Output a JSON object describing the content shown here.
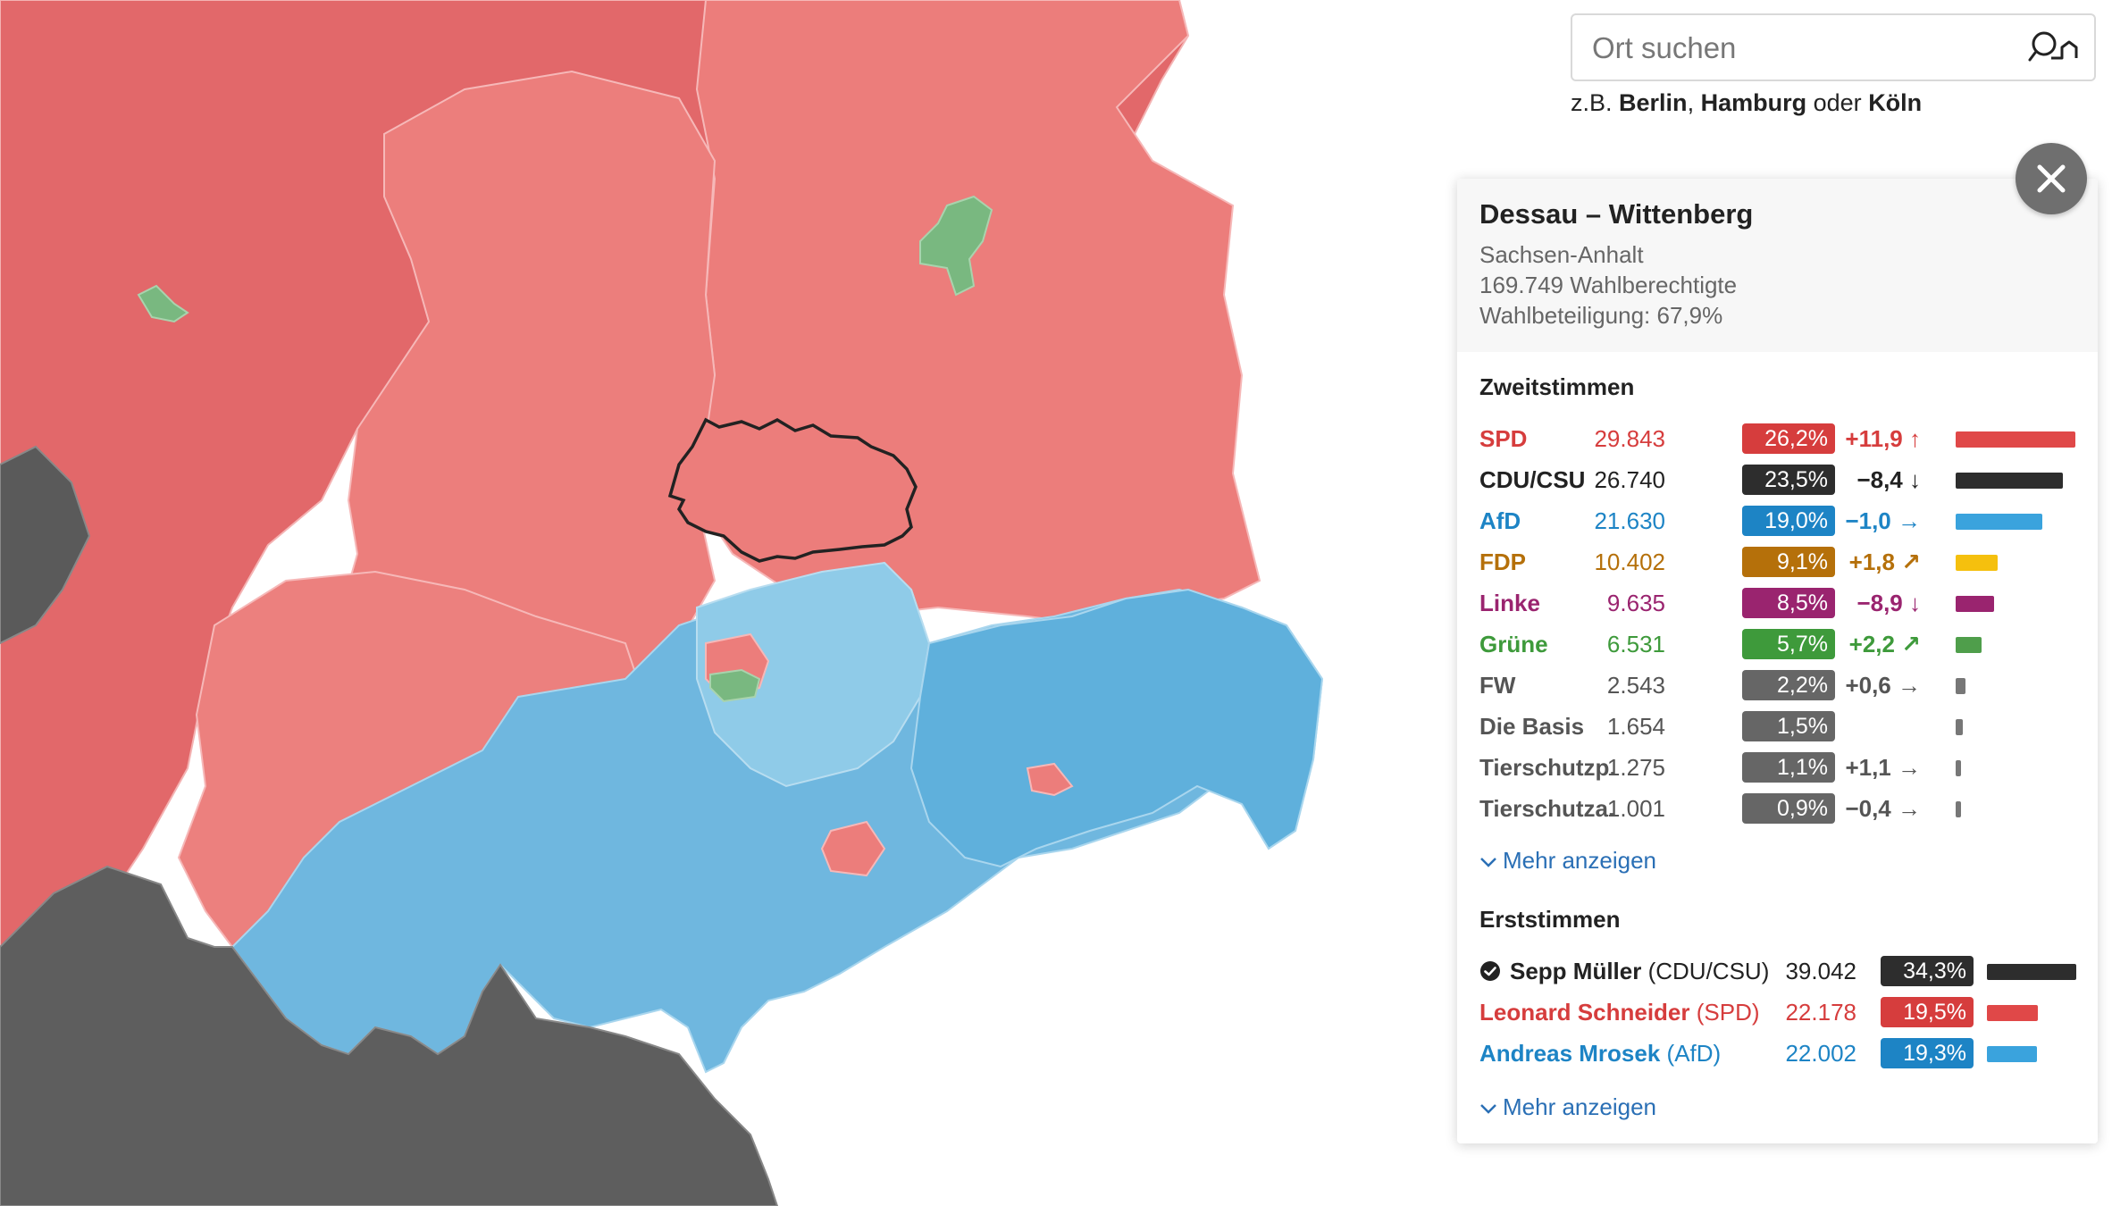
{
  "search": {
    "placeholder": "Ort suchen",
    "hint_prefix": "z.B.",
    "hint_city1": "Berlin",
    "hint_sep": ",",
    "hint_city2": "Hamburg",
    "hint_or": "oder",
    "hint_city3": "Köln",
    "button_icon": "search-location-icon"
  },
  "close_icon": "close-icon",
  "district": {
    "name": "Dessau – Wittenberg",
    "state": "Sachsen-Anhalt",
    "eligible": "169.749 Wahlberechtigte",
    "turnout": "Wahlbeteiligung: 67,9%"
  },
  "zweitstimmen": {
    "title": "Zweitstimmen",
    "more_label": "Mehr anzeigen",
    "parties": [
      {
        "name": "SPD",
        "votes": "29.843",
        "pct": "26,2%",
        "diff": "+11,9",
        "trend": "up",
        "share": 26.2,
        "color": "#d63d3d",
        "bar_color": "#e04848",
        "name_color": "#d63d3d"
      },
      {
        "name": "CDU/CSU",
        "votes": "26.740",
        "pct": "23,5%",
        "diff": "−8,4",
        "trend": "down",
        "share": 23.5,
        "color": "#2d2d2d",
        "bar_color": "#2d2d2d",
        "name_color": "#222222"
      },
      {
        "name": "AfD",
        "votes": "21.630",
        "pct": "19,0%",
        "diff": "−1,0",
        "trend": "right",
        "share": 19.0,
        "color": "#1d84c5",
        "bar_color": "#3aa3dd",
        "name_color": "#1d84c5"
      },
      {
        "name": "FDP",
        "votes": "10.402",
        "pct": "9,1%",
        "diff": "+1,8",
        "trend": "up-right",
        "share": 9.1,
        "color": "#b5700a",
        "bar_color": "#f5c00e",
        "name_color": "#b5700a"
      },
      {
        "name": "Linke",
        "votes": "9.635",
        "pct": "8,5%",
        "diff": "−8,9",
        "trend": "down",
        "share": 8.5,
        "color": "#9a246f",
        "bar_color": "#9a246f",
        "name_color": "#9a246f"
      },
      {
        "name": "Grüne",
        "votes": "6.531",
        "pct": "5,7%",
        "diff": "+2,2",
        "trend": "up-right",
        "share": 5.7,
        "color": "#3e9a3b",
        "bar_color": "#4f9e4b",
        "name_color": "#3e9a3b"
      },
      {
        "name": "FW",
        "votes": "2.543",
        "pct": "2,2%",
        "diff": "+0,6",
        "trend": "right",
        "share": 2.2,
        "color": "#666666",
        "bar_color": "#777777",
        "name_color": "#555555"
      },
      {
        "name": "Die Basis",
        "votes": "1.654",
        "pct": "1,5%",
        "diff": "",
        "trend": "",
        "share": 1.5,
        "color": "#666666",
        "bar_color": "#777777",
        "name_color": "#555555"
      },
      {
        "name": "Tierschutzp.",
        "votes": "1.275",
        "pct": "1,1%",
        "diff": "+1,1",
        "trend": "right",
        "share": 1.1,
        "color": "#666666",
        "bar_color": "#777777",
        "name_color": "#555555"
      },
      {
        "name": "Tierschutza.",
        "votes": "1.001",
        "pct": "0,9%",
        "diff": "−0,4",
        "trend": "right",
        "share": 0.9,
        "color": "#666666",
        "bar_color": "#777777",
        "name_color": "#555555"
      }
    ]
  },
  "erststimmen": {
    "title": "Erststimmen",
    "more_label": "Mehr anzeigen",
    "candidates": [
      {
        "name": "Sepp Müller",
        "party": "(CDU/CSU)",
        "votes": "39.042",
        "pct": "34,3%",
        "share": 34.3,
        "winner": true,
        "color": "#2d2d2d",
        "bar_color": "#2d2d2d",
        "name_color": "#222222"
      },
      {
        "name": "Leonard Schneider",
        "party": "(SPD)",
        "votes": "22.178",
        "pct": "19,5%",
        "share": 19.5,
        "winner": false,
        "color": "#d63d3d",
        "bar_color": "#e04848",
        "name_color": "#d63d3d"
      },
      {
        "name": "Andreas Mrosek",
        "party": "(AfD)",
        "votes": "22.002",
        "pct": "19,3%",
        "share": 19.3,
        "winner": false,
        "color": "#1d84c5",
        "bar_color": "#3aa3dd",
        "name_color": "#1d84c5"
      }
    ]
  },
  "map_colors": {
    "spd_dark": "#e06565",
    "spd_light": "#ec7d7b",
    "afd": "#78bde2",
    "afd_light": "#8fcbe8",
    "cdu": "#606060",
    "gruene": "#79b880"
  }
}
